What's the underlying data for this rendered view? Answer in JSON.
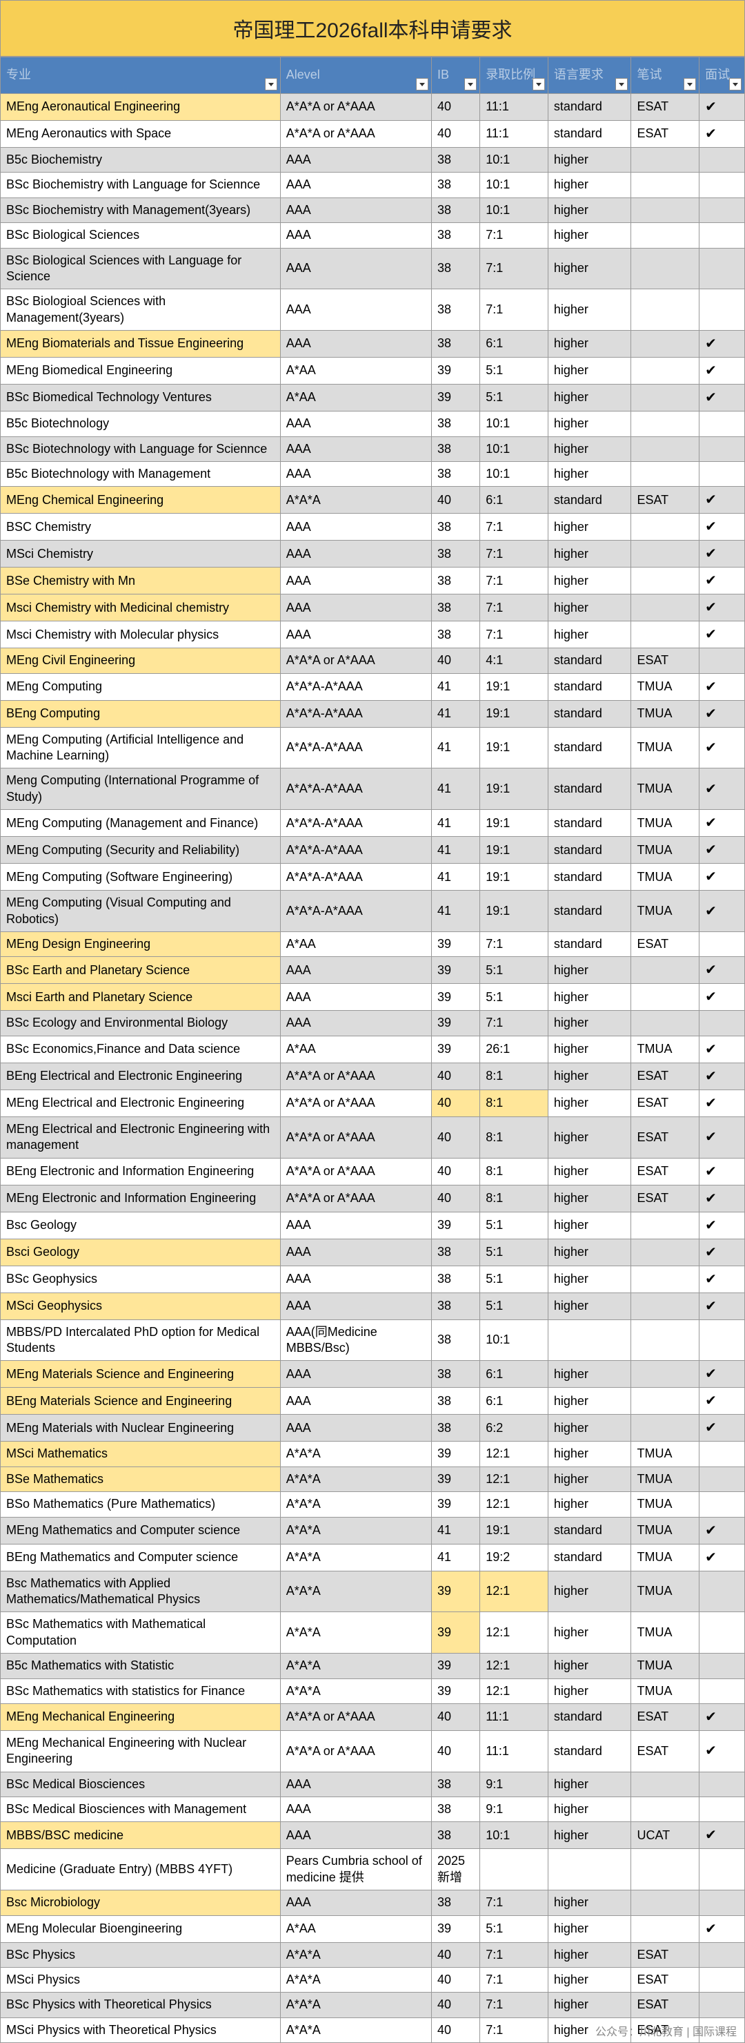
{
  "title": "帝国理工2026fall本科申请要求",
  "headers": [
    "专业",
    "Alevel",
    "IB",
    "录取比例",
    "语言要求",
    "笔试",
    "面试"
  ],
  "col_widths": [
    "col-prog",
    "col-alevel",
    "col-ib",
    "col-ratio",
    "col-lang",
    "col-test",
    "col-intv"
  ],
  "colors": {
    "title_bg": "#f7cf55",
    "header_bg": "#4f81bd",
    "header_fg": "#b9cde5",
    "row_odd": "#dcdcdc",
    "row_even": "#ffffff",
    "border": "#999999",
    "highlight": "#ffe699"
  },
  "check_symbol": "✔",
  "watermark": "公众号：川北教育 | 国际课程",
  "rows": [
    {
      "c": [
        "MEng Aeronautical Engineering",
        "A*A*A or A*AAA",
        "40",
        "11:1",
        "standard",
        "ESAT",
        "✔"
      ],
      "hl": [
        0
      ]
    },
    {
      "c": [
        "MEng Aeronautics with Space",
        "A*A*A or A*AAA",
        "40",
        "11:1",
        "standard",
        "ESAT",
        "✔"
      ]
    },
    {
      "c": [
        "B5c Biochemistry",
        "AAA",
        "38",
        "10:1",
        "higher",
        "",
        ""
      ]
    },
    {
      "c": [
        "BSc Biochemistry with Language for Sciennce",
        "AAA",
        "38",
        "10:1",
        "higher",
        "",
        ""
      ]
    },
    {
      "c": [
        "BSc Biochemistry with Management(3years)",
        "AAA",
        "38",
        "10:1",
        "higher",
        "",
        ""
      ]
    },
    {
      "c": [
        "BSc Biological Sciences",
        "AAA",
        "38",
        "7:1",
        "higher",
        "",
        ""
      ]
    },
    {
      "c": [
        "BSc Biological Sciences with Language for Science",
        "AAA",
        "38",
        "7:1",
        "higher",
        "",
        ""
      ]
    },
    {
      "c": [
        "BSc Biologioal Sciences with Management(3years)",
        "AAA",
        "38",
        "7:1",
        "higher",
        "",
        ""
      ]
    },
    {
      "c": [
        "MEng Biomaterials and Tissue Engineering",
        "AAA",
        "38",
        "6:1",
        "higher",
        "",
        "✔"
      ],
      "hl": [
        0
      ]
    },
    {
      "c": [
        "MEng Biomedical Engineering",
        "A*AA",
        "39",
        "5:1",
        "higher",
        "",
        "✔"
      ]
    },
    {
      "c": [
        "BSc Biomedical Technology Ventures",
        "A*AA",
        "39",
        "5:1",
        "higher",
        "",
        "✔"
      ]
    },
    {
      "c": [
        "B5c Biotechnology",
        "AAA",
        "38",
        "10:1",
        "higher",
        "",
        ""
      ]
    },
    {
      "c": [
        "BSc Biotechnology with Language  for Sciennce",
        "AAA",
        "38",
        "10:1",
        "higher",
        "",
        ""
      ]
    },
    {
      "c": [
        "B5c Biotechnology with Management",
        "AAA",
        "38",
        "10:1",
        "higher",
        "",
        ""
      ]
    },
    {
      "c": [
        "MEng Chemical Engineering",
        "A*A*A",
        "40",
        "6:1",
        "standard",
        "ESAT",
        "✔"
      ],
      "hl": [
        0
      ]
    },
    {
      "c": [
        "BSC Chemistry",
        "AAA",
        "38",
        "7:1",
        "higher",
        "",
        "✔"
      ]
    },
    {
      "c": [
        "MSci Chemistry",
        "AAA",
        "38",
        "7:1",
        "higher",
        "",
        "✔"
      ]
    },
    {
      "c": [
        "BSe Chemistry with Mn",
        "AAA",
        "38",
        "7:1",
        "higher",
        "",
        "✔"
      ],
      "hl": [
        0
      ]
    },
    {
      "c": [
        "Msci Chemistry with Medicinal chemistry",
        "AAA",
        "38",
        "7:1",
        "higher",
        "",
        "✔"
      ],
      "hl": [
        0
      ]
    },
    {
      "c": [
        "Msci Chemistry with Molecular physics",
        "AAA",
        "38",
        "7:1",
        "higher",
        "",
        "✔"
      ]
    },
    {
      "c": [
        "MEng Civil Engineering",
        "A*A*A or A*AAA",
        "40",
        "4:1",
        "standard",
        "ESAT",
        ""
      ],
      "hl": [
        0
      ]
    },
    {
      "c": [
        "MEng Computing",
        "A*A*A-A*AAA",
        "41",
        "19:1",
        "standard",
        "TMUA",
        "✔"
      ]
    },
    {
      "c": [
        "BEng Computing",
        "A*A*A-A*AAA",
        "41",
        "19:1",
        "standard",
        "TMUA",
        "✔"
      ],
      "hl": [
        0
      ]
    },
    {
      "c": [
        "MEng Computing (Artificial Intelligence and Machine Learning)",
        "A*A*A-A*AAA",
        "41",
        "19:1",
        "standard",
        "TMUA",
        "✔"
      ]
    },
    {
      "c": [
        "Meng Computing (International Programme of Study)",
        "A*A*A-A*AAA",
        "41",
        "19:1",
        "standard",
        "TMUA",
        "✔"
      ]
    },
    {
      "c": [
        "MEng Computing  (Management and Finance)",
        "A*A*A-A*AAA",
        "41",
        "19:1",
        "standard",
        "TMUA",
        "✔"
      ]
    },
    {
      "c": [
        "MEng Computing (Security and Reliability)",
        "A*A*A-A*AAA",
        "41",
        "19:1",
        "standard",
        "TMUA",
        "✔"
      ]
    },
    {
      "c": [
        "MEng Computing (Software Engineering)",
        "A*A*A-A*AAA",
        "41",
        "19:1",
        "standard",
        "TMUA",
        "✔"
      ]
    },
    {
      "c": [
        "MEng Computing (Visual Computing and Robotics)",
        "A*A*A-A*AAA",
        "41",
        "19:1",
        "standard",
        "TMUA",
        "✔"
      ]
    },
    {
      "c": [
        "MEng Design Engineering",
        "A*AA",
        "39",
        "7:1",
        "standard",
        "ESAT",
        ""
      ],
      "hl": [
        0
      ]
    },
    {
      "c": [
        "BSc Earth and Planetary Science",
        "AAA",
        "39",
        "5:1",
        "higher",
        "",
        "✔"
      ],
      "hl": [
        0
      ]
    },
    {
      "c": [
        "Msci Earth and Planetary Science",
        "AAA",
        "39",
        "5:1",
        "higher",
        "",
        "✔"
      ],
      "hl": [
        0
      ]
    },
    {
      "c": [
        "BSc Ecology and Environmental Biology",
        "AAA",
        "39",
        "7:1",
        "higher",
        "",
        ""
      ]
    },
    {
      "c": [
        "BSc Economics,Finance and Data science",
        "A*AA",
        "39",
        "26:1",
        "higher",
        "TMUA",
        "✔"
      ]
    },
    {
      "c": [
        "BEng Electrical and Electronic Engineering",
        "A*A*A or A*AAA",
        "40",
        "8:1",
        "higher",
        "ESAT",
        "✔"
      ]
    },
    {
      "c": [
        "MEng Electrical and Electronic Engineering",
        "A*A*A or A*AAA",
        "40",
        "8:1",
        "higher",
        "ESAT",
        "✔"
      ],
      "hl": [
        2,
        3
      ]
    },
    {
      "c": [
        "MEng Electrical and Electronic Engineering with management",
        "A*A*A or A*AAA",
        "40",
        "8:1",
        "higher",
        "ESAT",
        "✔"
      ]
    },
    {
      "c": [
        "BEng Electronic and Information Engineering",
        "A*A*A or A*AAA",
        "40",
        "8:1",
        "higher",
        "ESAT",
        "✔"
      ]
    },
    {
      "c": [
        "MEng Electronic and Information Engineering",
        "A*A*A or A*AAA",
        "40",
        "8:1",
        "higher",
        "ESAT",
        "✔"
      ]
    },
    {
      "c": [
        "Bsc Geology",
        "AAA",
        "39",
        "5:1",
        "higher",
        "",
        "✔"
      ]
    },
    {
      "c": [
        "Bsci Geology",
        "AAA",
        "38",
        "5:1",
        "higher",
        "",
        "✔"
      ],
      "hl": [
        0
      ]
    },
    {
      "c": [
        "BSc Geophysics",
        "AAA",
        "38",
        "5:1",
        "higher",
        "",
        "✔"
      ]
    },
    {
      "c": [
        "MSci Geophysics",
        "AAA",
        "38",
        "5:1",
        "higher",
        "",
        "✔"
      ],
      "hl": [
        0
      ]
    },
    {
      "c": [
        "MBBS/PD Intercalated PhD option for Medical Students",
        "AAA(同Medicine MBBS/Bsc)",
        "38",
        "10:1",
        "",
        "",
        ""
      ]
    },
    {
      "c": [
        "MEng Materials Science and Engineering",
        "AAA",
        "38",
        "6:1",
        "higher",
        "",
        "✔"
      ],
      "hl": [
        0
      ]
    },
    {
      "c": [
        "BEng Materials Science and Engineering",
        "AAA",
        "38",
        "6:1",
        "higher",
        "",
        "✔"
      ],
      "hl": [
        0
      ]
    },
    {
      "c": [
        "MEng Materials with Nuclear Engineering",
        "AAA",
        "38",
        "6:2",
        "higher",
        "",
        "✔"
      ]
    },
    {
      "c": [
        "MSci Mathematics",
        "A*A*A",
        "39",
        "12:1",
        "higher",
        "TMUA",
        ""
      ],
      "hl": [
        0
      ]
    },
    {
      "c": [
        "BSe Mathematics",
        "A*A*A",
        "39",
        "12:1",
        "higher",
        "TMUA",
        ""
      ],
      "hl": [
        0
      ]
    },
    {
      "c": [
        "BSo Mathematics (Pure Mathematics)",
        "A*A*A",
        "39",
        "12:1",
        "higher",
        "TMUA",
        ""
      ]
    },
    {
      "c": [
        "MEng Mathematics and Computer science",
        "A*A*A",
        "41",
        "19:1",
        "standard",
        "TMUA",
        "✔"
      ]
    },
    {
      "c": [
        "BEng Mathematics and Computer science",
        "A*A*A",
        "41",
        "19:2",
        "standard",
        "TMUA",
        "✔"
      ]
    },
    {
      "c": [
        "Bsc Mathematics with Applied Mathematics/Mathematical Physics",
        "A*A*A",
        "39",
        "12:1",
        "higher",
        "TMUA",
        ""
      ],
      "hl": [
        2,
        3
      ]
    },
    {
      "c": [
        "BSc Mathematics with Mathematical Computation",
        "A*A*A",
        "39",
        "12:1",
        "higher",
        "TMUA",
        ""
      ],
      "hl": [
        2
      ]
    },
    {
      "c": [
        "B5c Mathematics with Statistic",
        "A*A*A",
        "39",
        "12:1",
        "higher",
        "TMUA",
        ""
      ]
    },
    {
      "c": [
        "BSc Mathematics with statistics for Finance",
        "A*A*A",
        "39",
        "12:1",
        "higher",
        "TMUA",
        ""
      ]
    },
    {
      "c": [
        "MEng Mechanical Engineering",
        "A*A*A or A*AAA",
        "40",
        "11:1",
        "standard",
        "ESAT",
        "✔"
      ],
      "hl": [
        0
      ]
    },
    {
      "c": [
        "MEng Mechanical Engineering with Nuclear Engineering",
        "A*A*A or A*AAA",
        "40",
        "11:1",
        "standard",
        "ESAT",
        "✔"
      ]
    },
    {
      "c": [
        "BSc Medical Biosciences",
        "AAA",
        "38",
        "9:1",
        "higher",
        "",
        ""
      ]
    },
    {
      "c": [
        "BSc Medical Biosciences with Management",
        "AAA",
        "38",
        "9:1",
        "higher",
        "",
        ""
      ]
    },
    {
      "c": [
        "MBBS/BSC medicine",
        "AAA",
        "38",
        "10:1",
        "higher",
        "UCAT",
        "✔"
      ],
      "hl": [
        0
      ]
    },
    {
      "c": [
        "Medicine (Graduate Entry) (MBBS 4YFT)",
        "Pears Cumbria school of medicine 提供",
        "2025新增",
        "",
        "",
        "",
        ""
      ]
    },
    {
      "c": [
        "Bsc Microbiology",
        "AAA",
        "38",
        "7:1",
        "higher",
        "",
        ""
      ],
      "hl": [
        0
      ]
    },
    {
      "c": [
        "MEng Molecular Bioengineering",
        "A*AA",
        "39",
        "5:1",
        "higher",
        "",
        "✔"
      ]
    },
    {
      "c": [
        "BSc Physics",
        "A*A*A",
        "40",
        "7:1",
        "higher",
        "ESAT",
        ""
      ]
    },
    {
      "c": [
        "MSci  Physics",
        "A*A*A",
        "40",
        "7:1",
        "higher",
        "ESAT",
        ""
      ]
    },
    {
      "c": [
        "BSc Physics with Theoretical Physics",
        "A*A*A",
        "40",
        "7:1",
        "higher",
        "ESAT",
        ""
      ]
    },
    {
      "c": [
        "MSci  Physics with Theoretical Physics",
        "A*A*A",
        "40",
        "7:1",
        "higher",
        "ESAT",
        ""
      ]
    }
  ]
}
